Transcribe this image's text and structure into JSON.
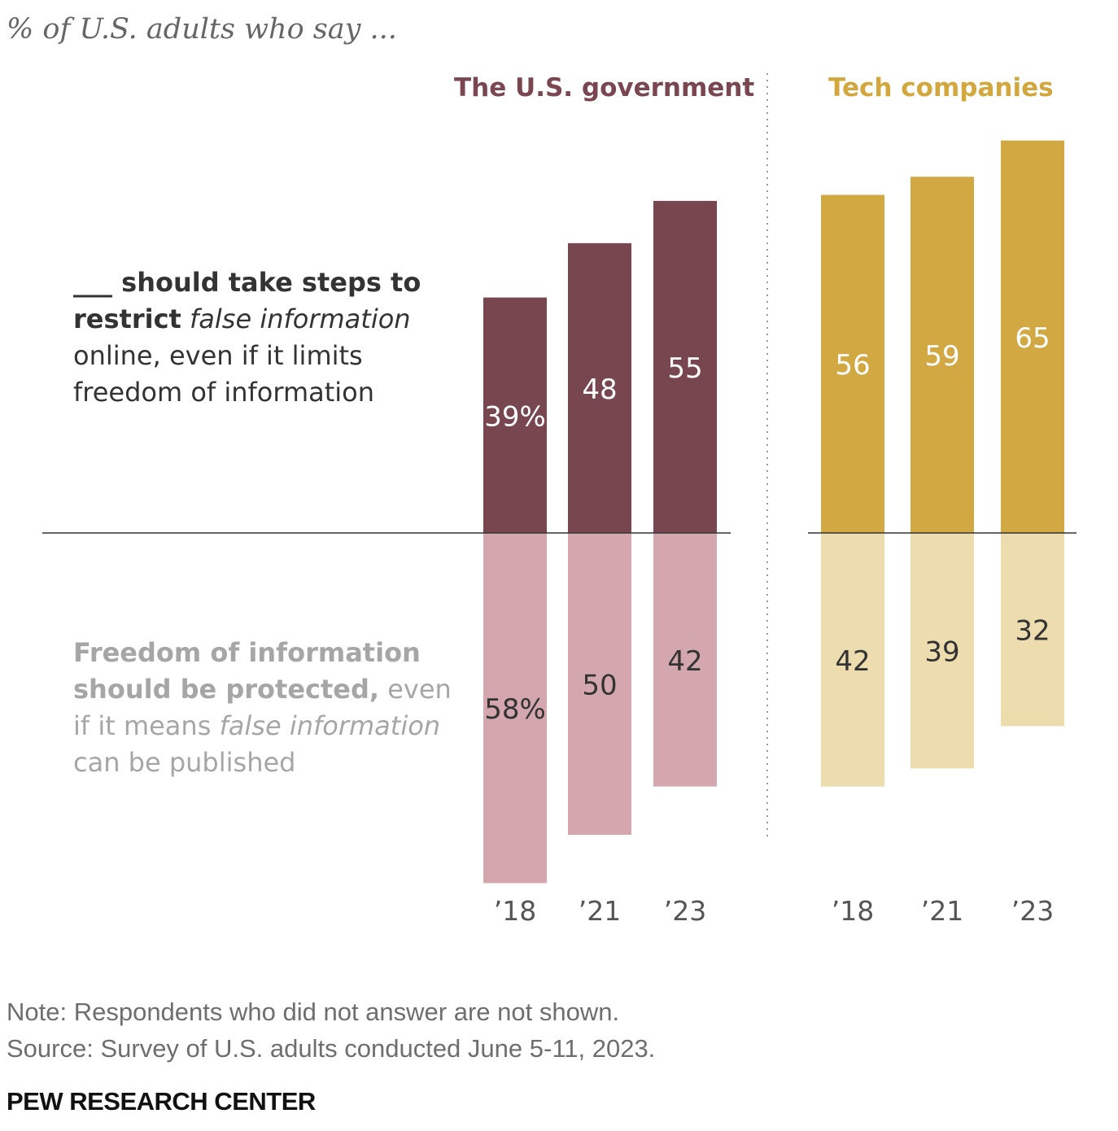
{
  "subtitle": "% of U.S. adults who say ...",
  "labels": {
    "top_blank": "___",
    "top_bold_1": " should take steps to",
    "top_bold_2": "restrict",
    "top_italic": "false information",
    "top_rest": "online, even if it limits freedom of information",
    "bottom_bold": "Freedom of information should be protected,",
    "bottom_pre": "even if it means",
    "bottom_italic_1": "false",
    "bottom_italic_2": "information",
    "bottom_post": "can be published"
  },
  "note": "Note: Respondents who did not answer are not shown.",
  "source": "Source: Survey of U.S. adults conducted June 5-11, 2023.",
  "brand": "PEW RESEARCH CENTER",
  "colors": {
    "gov_dark": "#78464f",
    "gov_light": "#d4a7af",
    "tech_dark": "#d2a842",
    "tech_light": "#ecdcae",
    "gov_title": "#7a4650",
    "tech_title": "#d2a83e"
  },
  "chart_data": [
    {
      "type": "bar",
      "title": "The U.S. government",
      "categories": [
        "’18",
        "’21",
        "’23"
      ],
      "series": [
        {
          "name": "should take steps to restrict false information online, even if it limits freedom of information",
          "values": [
            39,
            48,
            55
          ],
          "labels": [
            "39%",
            "48",
            "55"
          ]
        },
        {
          "name": "Freedom of information should be protected, even if it means false information can be published",
          "values": [
            58,
            50,
            42
          ],
          "labels": [
            "58%",
            "50",
            "42"
          ]
        }
      ]
    },
    {
      "type": "bar",
      "title": "Tech companies",
      "categories": [
        "’18",
        "’21",
        "’23"
      ],
      "series": [
        {
          "name": "should take steps to restrict false information online, even if it limits freedom of information",
          "values": [
            56,
            59,
            65
          ],
          "labels": [
            "56",
            "59",
            "65"
          ]
        },
        {
          "name": "Freedom of information should be protected, even if it means false information can be published",
          "values": [
            42,
            39,
            32
          ],
          "labels": [
            "42",
            "39",
            "32"
          ]
        }
      ]
    }
  ]
}
